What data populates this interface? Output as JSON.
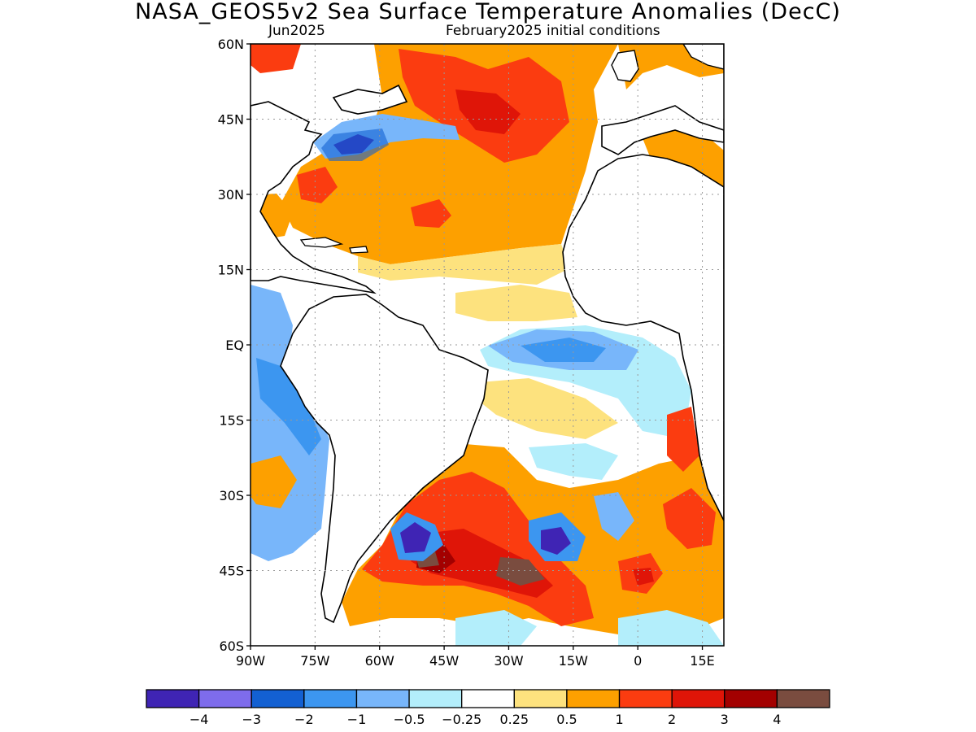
{
  "title": "NASA_GEOS5v2 Sea Surface Temperature Anomalies (DecC)",
  "subtitle_left": "Jun2025",
  "subtitle_right": "February2025 initial conditions",
  "map": {
    "lon_range": [
      -90,
      20
    ],
    "lat_range": [
      -60,
      60
    ],
    "lat_ticks": [
      {
        "value": 60,
        "label": "60N"
      },
      {
        "value": 45,
        "label": "45N"
      },
      {
        "value": 30,
        "label": "30N"
      },
      {
        "value": 15,
        "label": "15N"
      },
      {
        "value": 0,
        "label": "EQ"
      },
      {
        "value": -15,
        "label": "15S"
      },
      {
        "value": -30,
        "label": "30S"
      },
      {
        "value": -45,
        "label": "45S"
      },
      {
        "value": -60,
        "label": "60S"
      }
    ],
    "lon_ticks": [
      {
        "value": -90,
        "label": "90W"
      },
      {
        "value": -75,
        "label": "75W"
      },
      {
        "value": -60,
        "label": "60W"
      },
      {
        "value": -45,
        "label": "45W"
      },
      {
        "value": -30,
        "label": "30W"
      },
      {
        "value": -15,
        "label": "15W"
      },
      {
        "value": 0,
        "label": "0"
      },
      {
        "value": 15,
        "label": "15E"
      }
    ],
    "gridlines": "dotted"
  },
  "colorbar": {
    "colors": [
      "#3f24b4",
      "#7e6cec",
      "#1360d2",
      "#3c96f0",
      "#78b6fa",
      "#b3eefb",
      "#ffffff",
      "#fde27e",
      "#fda000",
      "#fb3c10",
      "#df1508",
      "#a30000",
      "#7a4c3f"
    ],
    "labels": [
      "−4",
      "−3",
      "−2",
      "−1",
      "−0.5",
      "−0.25",
      "0.25",
      "0.5",
      "1",
      "2",
      "3",
      "4"
    ]
  }
}
